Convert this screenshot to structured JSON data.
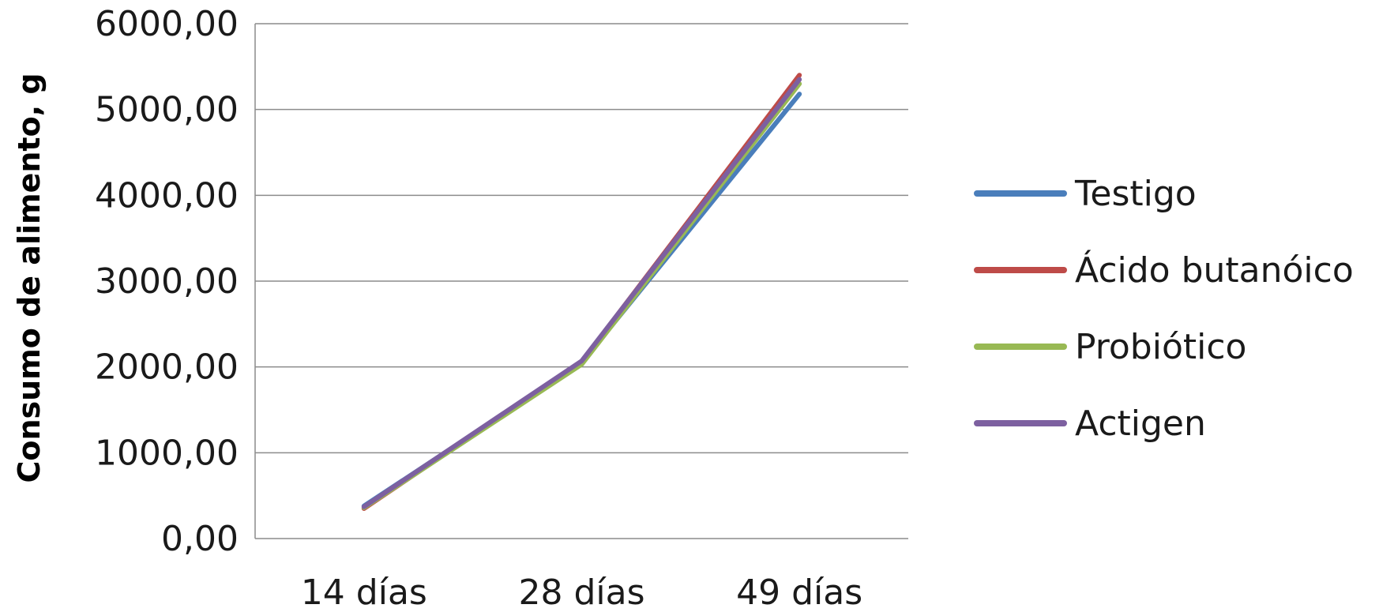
{
  "chart_data": {
    "type": "line",
    "categories": [
      "14 días",
      "28 días",
      "49 días"
    ],
    "series": [
      {
        "name": "Testigo",
        "color": "#4a7ebb",
        "values": [
          380,
          2050,
          5180
        ]
      },
      {
        "name": "Ácido butanóico",
        "color": "#be4b48",
        "values": [
          350,
          2060,
          5400
        ]
      },
      {
        "name": "Probiótico",
        "color": "#98b954",
        "values": [
          360,
          2030,
          5300
        ]
      },
      {
        "name": "Actigen",
        "color": "#7d60a0",
        "values": [
          370,
          2070,
          5350
        ]
      }
    ],
    "ylabel": "Consumo de alimento, g",
    "xlabel": "",
    "ylim": [
      0,
      6000
    ],
    "yticks": [
      "0,00",
      "1000,00",
      "2000,00",
      "3000,00",
      "4000,00",
      "5000,00",
      "6000,00"
    ],
    "grid": true,
    "legend_position": "right"
  }
}
